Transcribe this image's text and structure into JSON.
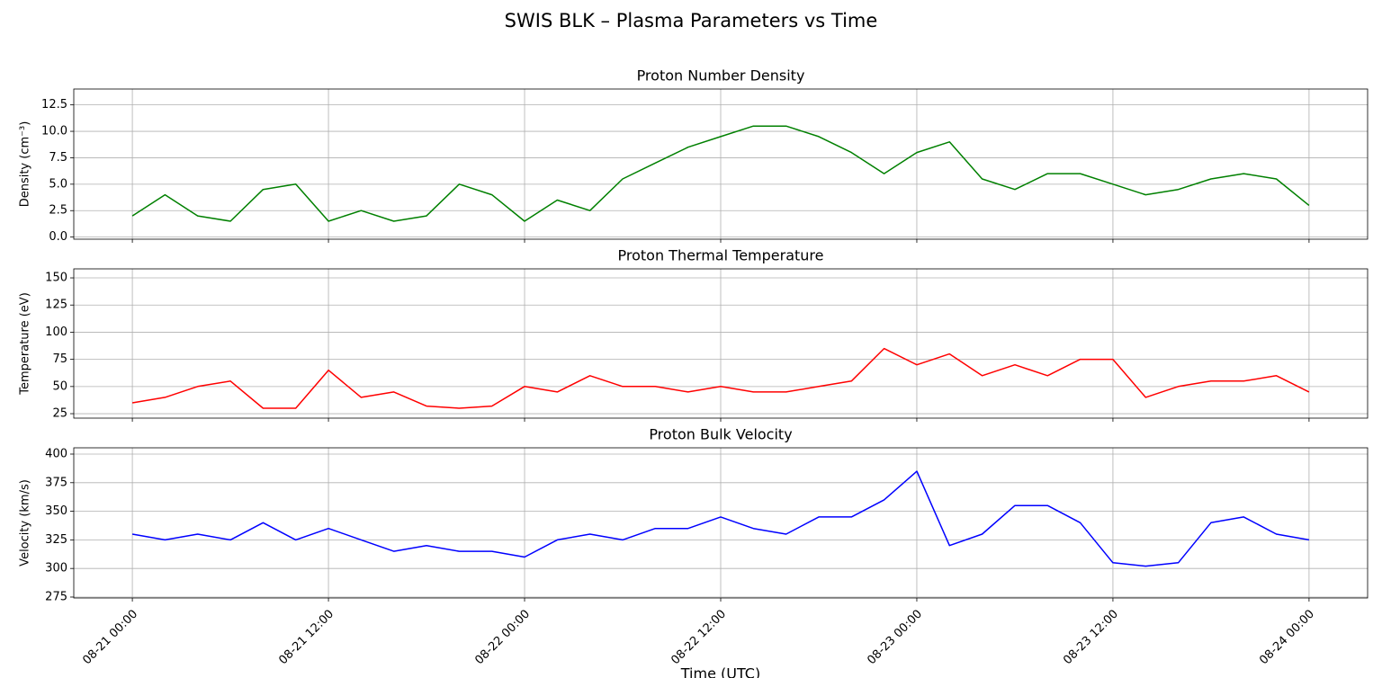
{
  "title": "SWIS BLK – Plasma Parameters vs Time",
  "chart_data": [
    {
      "type": "line",
      "title": "Proton Number Density",
      "ylabel": "Density (cm⁻³)",
      "color": "#008000",
      "grid": true,
      "x": [
        "08-21 00:00",
        "08-21 02:00",
        "08-21 04:00",
        "08-21 06:00",
        "08-21 08:00",
        "08-21 10:00",
        "08-21 12:00",
        "08-21 14:00",
        "08-21 16:00",
        "08-21 18:00",
        "08-21 20:00",
        "08-21 22:00",
        "08-22 00:00",
        "08-22 02:00",
        "08-22 04:00",
        "08-22 06:00",
        "08-22 08:00",
        "08-22 10:00",
        "08-22 12:00",
        "08-22 14:00",
        "08-22 16:00",
        "08-22 18:00",
        "08-22 20:00",
        "08-22 22:00",
        "08-23 00:00",
        "08-23 02:00",
        "08-23 04:00",
        "08-23 06:00",
        "08-23 08:00",
        "08-23 10:00",
        "08-23 12:00",
        "08-23 14:00",
        "08-23 16:00",
        "08-23 18:00",
        "08-23 20:00",
        "08-23 22:00",
        "08-24 00:00"
      ],
      "values": [
        2.0,
        4.0,
        2.0,
        1.5,
        4.5,
        5.0,
        1.5,
        2.5,
        1.5,
        2.0,
        5.0,
        4.0,
        1.5,
        3.5,
        2.5,
        5.5,
        7.0,
        8.5,
        9.5,
        10.5,
        10.5,
        9.5,
        8.0,
        6.0,
        8.0,
        9.0,
        5.5,
        4.5,
        6.0,
        6.0,
        5.0,
        4.0,
        4.5,
        5.5,
        6.0,
        5.5,
        3.0
      ],
      "xlim": [
        "08-20 20:25",
        "08-24 03:35"
      ],
      "xticks": [
        "08-21 00:00",
        "08-21 12:00",
        "08-22 00:00",
        "08-22 12:00",
        "08-23 00:00",
        "08-23 12:00",
        "08-24 00:00"
      ],
      "ylim": [
        -0.2,
        14.0
      ],
      "yticks": [
        {
          "value": 0,
          "label": "0.0"
        },
        2.5,
        {
          "value": 5,
          "label": "5.0"
        },
        7.5,
        {
          "value": 10,
          "label": "10.0"
        },
        12.5
      ]
    },
    {
      "type": "line",
      "title": "Proton Thermal Temperature",
      "ylabel": "Temperature (eV)",
      "color": "#ff0000",
      "grid": true,
      "x": [
        "08-21 00:00",
        "08-21 02:00",
        "08-21 04:00",
        "08-21 06:00",
        "08-21 08:00",
        "08-21 10:00",
        "08-21 12:00",
        "08-21 14:00",
        "08-21 16:00",
        "08-21 18:00",
        "08-21 20:00",
        "08-21 22:00",
        "08-22 00:00",
        "08-22 02:00",
        "08-22 04:00",
        "08-22 06:00",
        "08-22 08:00",
        "08-22 10:00",
        "08-22 12:00",
        "08-22 14:00",
        "08-22 16:00",
        "08-22 18:00",
        "08-22 20:00",
        "08-22 22:00",
        "08-23 00:00",
        "08-23 02:00",
        "08-23 04:00",
        "08-23 06:00",
        "08-23 08:00",
        "08-23 10:00",
        "08-23 12:00",
        "08-23 14:00",
        "08-23 16:00",
        "08-23 18:00",
        "08-23 20:00",
        "08-23 22:00",
        "08-24 00:00"
      ],
      "values": [
        35,
        40,
        50,
        55,
        30,
        30,
        65,
        40,
        45,
        32,
        30,
        32,
        50,
        45,
        60,
        50,
        50,
        45,
        50,
        45,
        45,
        50,
        55,
        85,
        70,
        80,
        60,
        70,
        60,
        75,
        75,
        40,
        50,
        55,
        55,
        60,
        45
      ],
      "xlim": [
        "08-20 20:25",
        "08-24 03:35"
      ],
      "xticks": [
        "08-21 00:00",
        "08-21 12:00",
        "08-22 00:00",
        "08-22 12:00",
        "08-23 00:00",
        "08-23 12:00",
        "08-24 00:00"
      ],
      "ylim": [
        20.9,
        158.3
      ],
      "yticks": [
        25,
        50,
        75,
        100,
        125,
        150
      ]
    },
    {
      "type": "line",
      "title": "Proton Bulk Velocity",
      "ylabel": "Velocity (km/s)",
      "xlabel": "Time (UTC)",
      "color": "#0000ff",
      "grid": true,
      "x": [
        "08-21 00:00",
        "08-21 02:00",
        "08-21 04:00",
        "08-21 06:00",
        "08-21 08:00",
        "08-21 10:00",
        "08-21 12:00",
        "08-21 14:00",
        "08-21 16:00",
        "08-21 18:00",
        "08-21 20:00",
        "08-21 22:00",
        "08-22 00:00",
        "08-22 02:00",
        "08-22 04:00",
        "08-22 06:00",
        "08-22 08:00",
        "08-22 10:00",
        "08-22 12:00",
        "08-22 14:00",
        "08-22 16:00",
        "08-22 18:00",
        "08-22 20:00",
        "08-22 22:00",
        "08-23 00:00",
        "08-23 02:00",
        "08-23 04:00",
        "08-23 06:00",
        "08-23 08:00",
        "08-23 10:00",
        "08-23 12:00",
        "08-23 14:00",
        "08-23 16:00",
        "08-23 18:00",
        "08-23 20:00",
        "08-23 22:00",
        "08-24 00:00"
      ],
      "values": [
        330,
        325,
        330,
        325,
        340,
        325,
        335,
        325,
        315,
        320,
        315,
        315,
        310,
        325,
        330,
        325,
        335,
        335,
        345,
        335,
        330,
        345,
        345,
        360,
        385,
        320,
        330,
        355,
        355,
        340,
        305,
        302,
        305,
        340,
        345,
        330,
        325
      ],
      "xlim": [
        "08-20 20:25",
        "08-24 03:35"
      ],
      "xticks": [
        "08-21 00:00",
        "08-21 12:00",
        "08-22 00:00",
        "08-22 12:00",
        "08-23 00:00",
        "08-23 12:00",
        "08-24 00:00"
      ],
      "ylim": [
        274.2,
        405.5
      ],
      "yticks": [
        275,
        300,
        325,
        350,
        375,
        400
      ]
    }
  ]
}
